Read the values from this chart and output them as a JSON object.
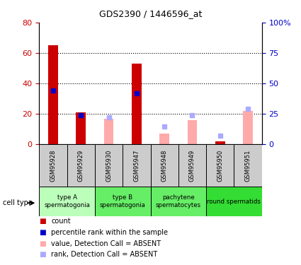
{
  "title": "GDS2390 / 1446596_at",
  "samples": [
    "GSM95928",
    "GSM95929",
    "GSM95930",
    "GSM95947",
    "GSM95948",
    "GSM95949",
    "GSM95950",
    "GSM95951"
  ],
  "count_values": [
    65,
    21,
    null,
    53,
    null,
    null,
    2,
    null
  ],
  "percentile_values": [
    44,
    24,
    null,
    42,
    null,
    null,
    null,
    null
  ],
  "absent_value_values": [
    null,
    null,
    17,
    null,
    7,
    16,
    null,
    22
  ],
  "absent_rank_values": [
    null,
    null,
    22,
    null,
    15,
    24,
    7,
    29
  ],
  "cell_types_info": [
    {
      "label": "type A\nspermatogonia",
      "start": 0,
      "end": 2,
      "color": "#bbffbb"
    },
    {
      "label": "type B\nspermatogonia",
      "start": 2,
      "end": 4,
      "color": "#66ee66"
    },
    {
      "label": "pachytene\nspermatocytes",
      "start": 4,
      "end": 6,
      "color": "#66ee66"
    },
    {
      "label": "round spermatids",
      "start": 6,
      "end": 8,
      "color": "#33dd33"
    }
  ],
  "ylim_left": [
    0,
    80
  ],
  "ylim_right": [
    0,
    100
  ],
  "count_color": "#cc0000",
  "percentile_color": "#0000cc",
  "absent_value_color": "#ffaaaa",
  "absent_rank_color": "#aaaaff",
  "tick_label_color_left": "#cc0000",
  "tick_label_color_right": "#0000cc",
  "sample_box_color": "#cccccc",
  "bar_width": 0.5,
  "legend_items": [
    {
      "color": "#cc0000",
      "label": "count"
    },
    {
      "color": "#0000cc",
      "label": "percentile rank within the sample"
    },
    {
      "color": "#ffaaaa",
      "label": "value, Detection Call = ABSENT"
    },
    {
      "color": "#aaaaff",
      "label": "rank, Detection Call = ABSENT"
    }
  ]
}
